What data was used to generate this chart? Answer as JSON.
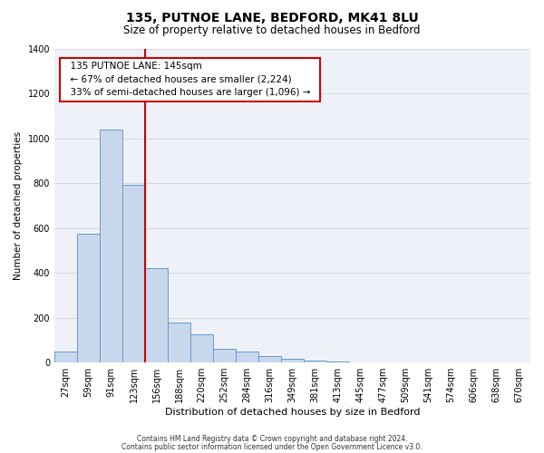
{
  "title": "135, PUTNOE LANE, BEDFORD, MK41 8LU",
  "subtitle": "Size of property relative to detached houses in Bedford",
  "xlabel": "Distribution of detached houses by size in Bedford",
  "ylabel": "Number of detached properties",
  "bar_values": [
    50,
    575,
    1040,
    795,
    420,
    178,
    125,
    62,
    48,
    28,
    18,
    10,
    5,
    2,
    1,
    0,
    0,
    0,
    0,
    0,
    0
  ],
  "bar_labels": [
    "27sqm",
    "59sqm",
    "91sqm",
    "123sqm",
    "156sqm",
    "188sqm",
    "220sqm",
    "252sqm",
    "284sqm",
    "316sqm",
    "349sqm",
    "381sqm",
    "413sqm",
    "445sqm",
    "477sqm",
    "509sqm",
    "541sqm",
    "574sqm",
    "606sqm",
    "638sqm",
    "670sqm"
  ],
  "bar_color": "#c8d8ec",
  "bar_edge_color": "#6699cc",
  "ylim": [
    0,
    1400
  ],
  "yticks": [
    0,
    200,
    400,
    600,
    800,
    1000,
    1200,
    1400
  ],
  "vline_x": 3.5,
  "vline_color": "#cc0000",
  "annotation_title": "135 PUTNOE LANE: 145sqm",
  "annotation_line1": "← 67% of detached houses are smaller (2,224)",
  "annotation_line2": "33% of semi-detached houses are larger (1,096) →",
  "annotation_box_color": "#ffffff",
  "annotation_box_edge_color": "#cc0000",
  "footer_line1": "Contains HM Land Registry data © Crown copyright and database right 2024.",
  "footer_line2": "Contains public sector information licensed under the Open Government Licence v3.0.",
  "background_color": "#eef2f8"
}
